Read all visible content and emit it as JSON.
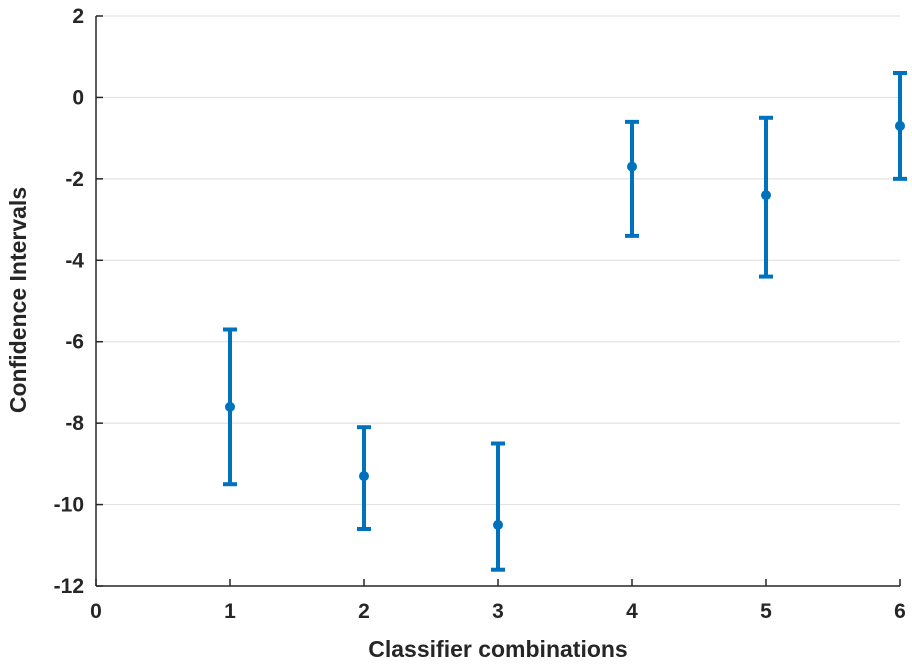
{
  "chart_data": {
    "type": "errorbar",
    "title": "",
    "xlabel": "Classifier combinations",
    "ylabel": "Confidence Intervals",
    "xlim": [
      0,
      6
    ],
    "ylim": [
      -12,
      2
    ],
    "xticks": [
      0,
      1,
      2,
      3,
      4,
      5,
      6
    ],
    "xtick_labels": [
      "0",
      "1",
      "2",
      "3",
      "4",
      "5",
      "6"
    ],
    "yticks": [
      2,
      0,
      -2,
      -4,
      -6,
      -8,
      -10,
      -12
    ],
    "ytick_labels": [
      "2",
      "0",
      "-2",
      "-4",
      "-6",
      "-8",
      "-10",
      "-12"
    ],
    "grid": "horizontal",
    "color": "#0072bd",
    "points": [
      {
        "x": 1,
        "y": -7.6,
        "lower": -9.5,
        "upper": -5.7
      },
      {
        "x": 2,
        "y": -9.3,
        "lower": -10.6,
        "upper": -8.1
      },
      {
        "x": 3,
        "y": -10.5,
        "lower": -11.6,
        "upper": -8.5
      },
      {
        "x": 4,
        "y": -1.7,
        "lower": -3.4,
        "upper": -0.6
      },
      {
        "x": 5,
        "y": -2.4,
        "lower": -4.4,
        "upper": -0.5
      },
      {
        "x": 6,
        "y": -0.7,
        "lower": -2.0,
        "upper": 0.6
      }
    ]
  }
}
